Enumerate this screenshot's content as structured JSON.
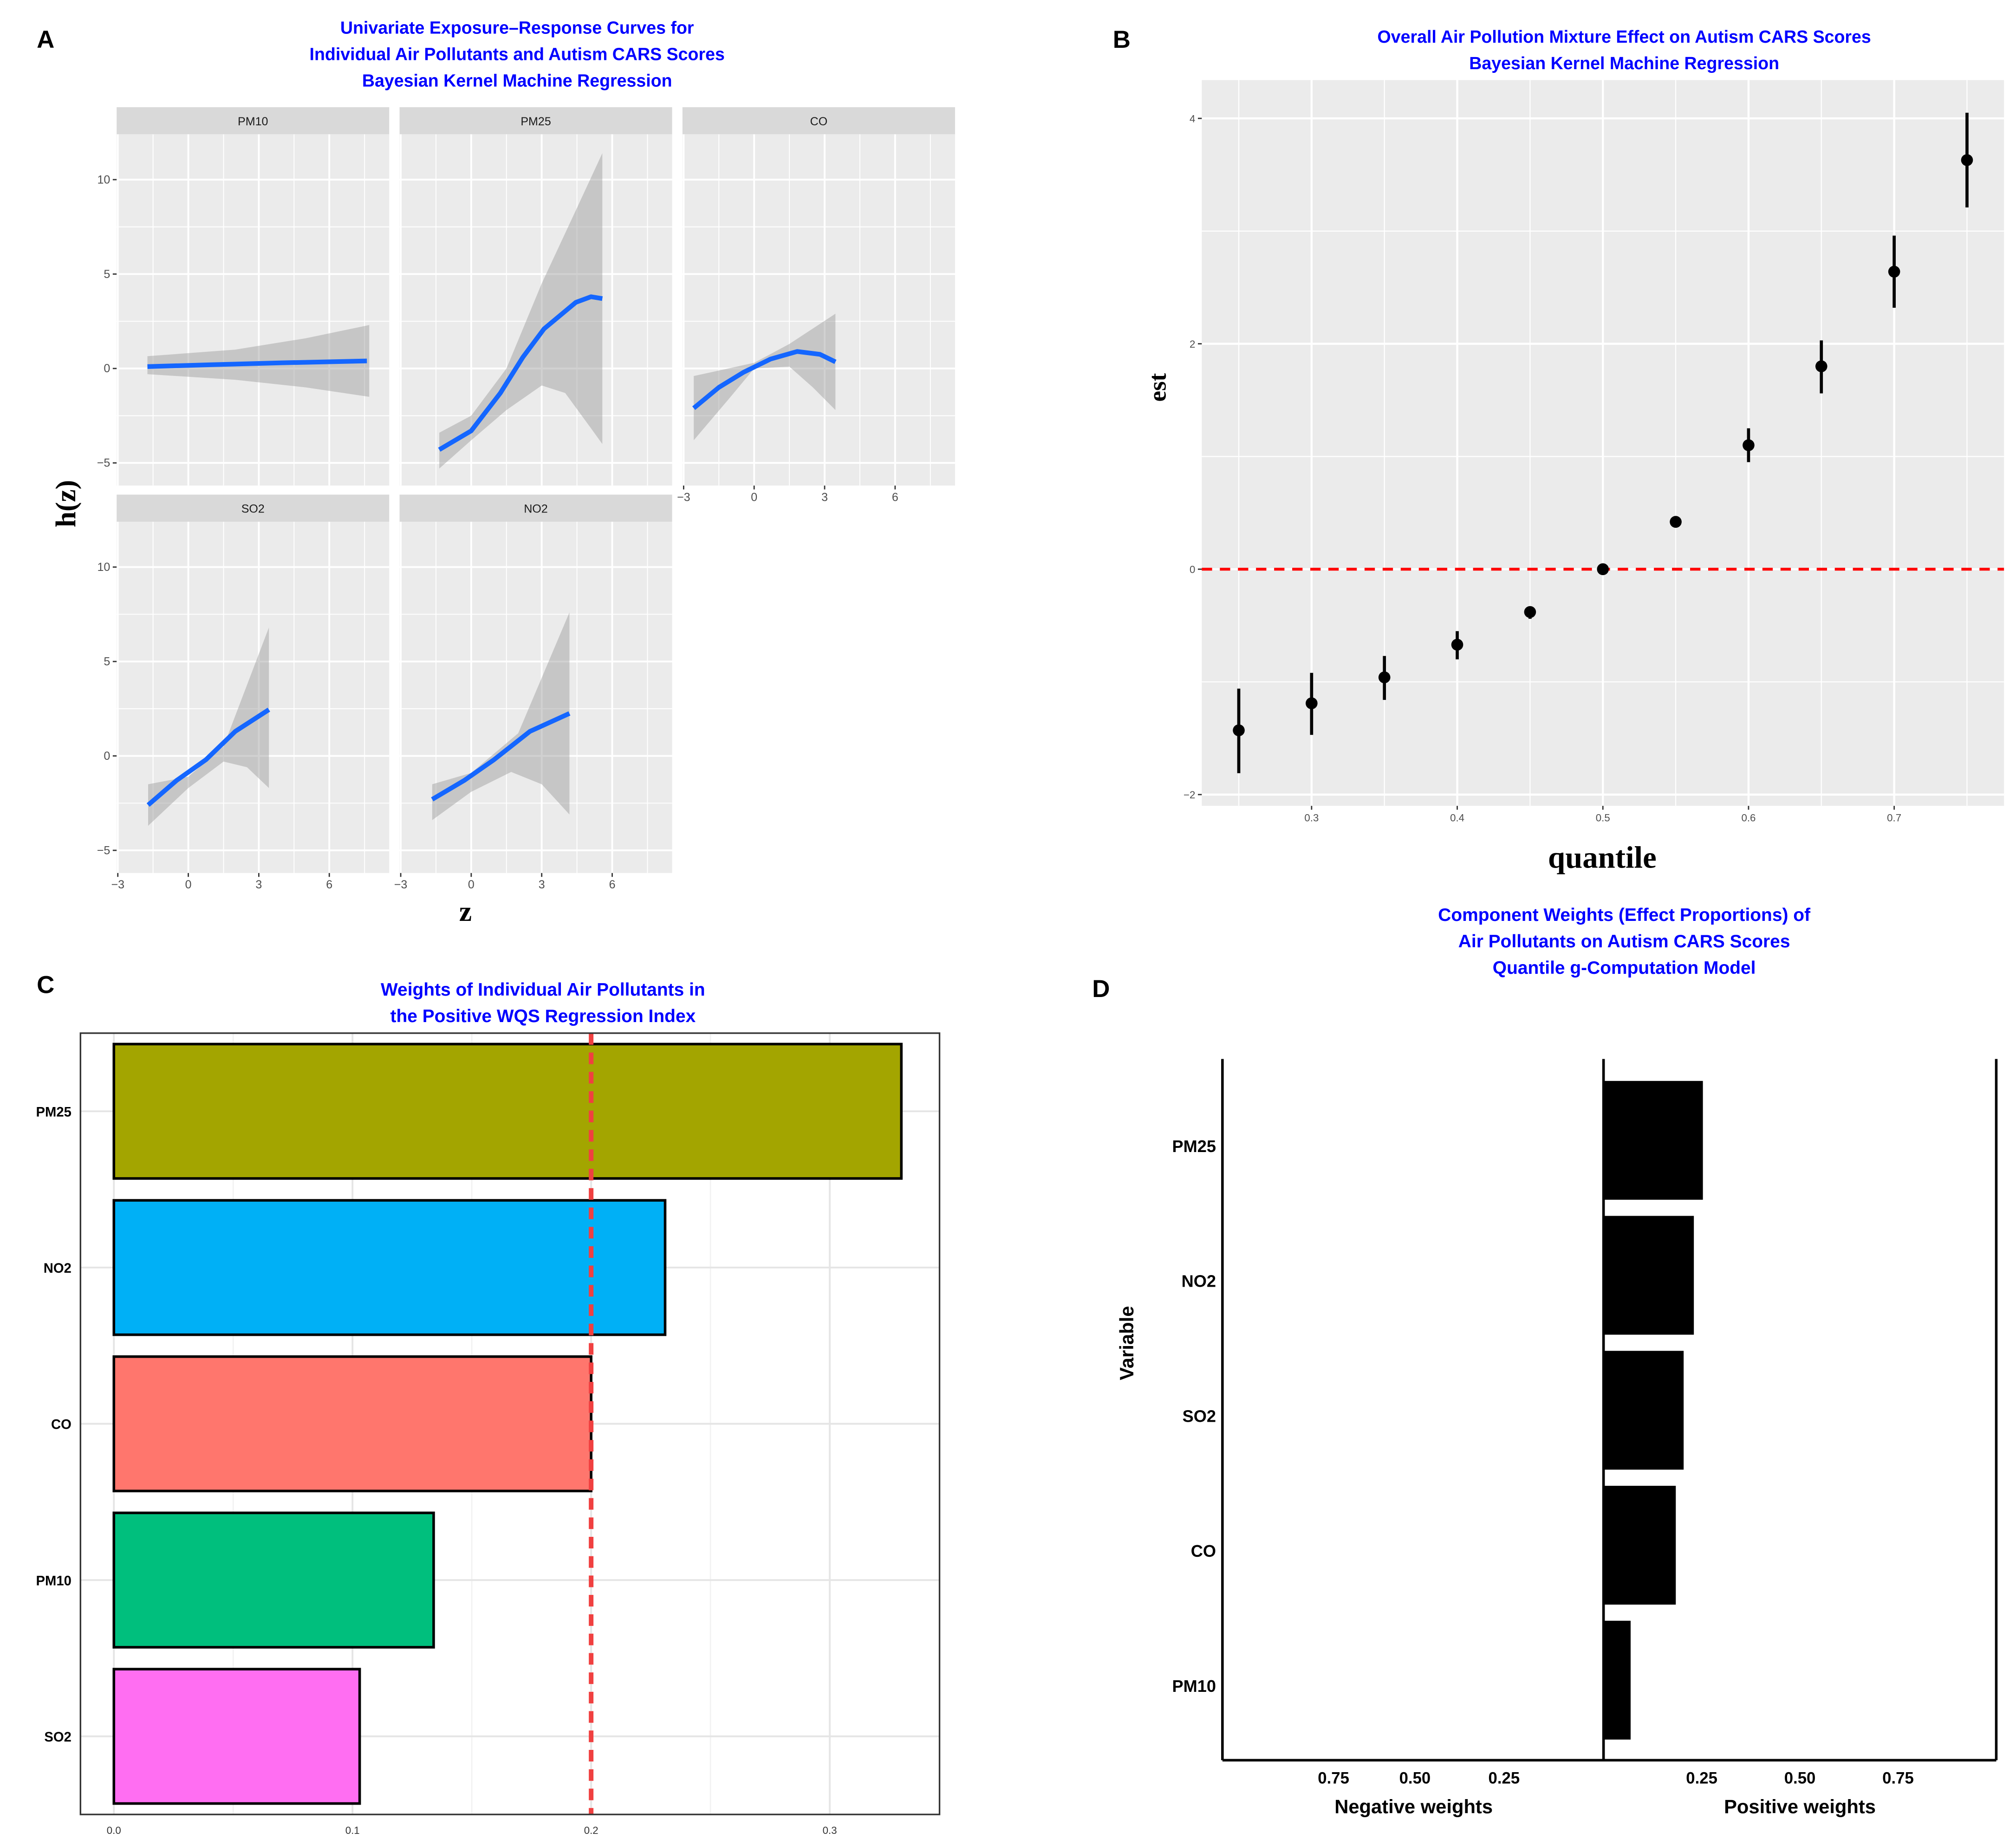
{
  "chart_data": [
    {
      "panel_label": "A",
      "type": "line",
      "title": [
        "Univariate Exposure–Response Curves for",
        "Individual Air Pollutants and Autism CARS Scores",
        "Bayesian Kernel Machine Regression"
      ],
      "xlabel": "z",
      "ylabel": "h(z)",
      "xlim": [
        -3.05,
        8.55
      ],
      "ylim": [
        -6.2,
        12.4
      ],
      "xticks": [
        -3,
        0,
        3,
        6
      ],
      "yticks": [
        -5,
        0,
        5,
        10
      ],
      "xtick_labels": [
        "−3",
        "0",
        "3",
        "6"
      ],
      "ytick_labels": [
        "−5",
        "0",
        "5",
        "10"
      ],
      "colors": {
        "curve": "#1466FF",
        "band": "#999999",
        "panel": "#EBEBEB",
        "strip": "#D9D9D9"
      },
      "facets": [
        {
          "name": "PM10",
          "curve": [
            [
              -1.74,
              0.1
            ],
            [
              1,
              0.2
            ],
            [
              4,
              0.3
            ],
            [
              7.6,
              0.4
            ]
          ],
          "upper": [
            [
              -1.74,
              0.65
            ],
            [
              2,
              1.0
            ],
            [
              5,
              1.6
            ],
            [
              7.7,
              2.3
            ]
          ],
          "lower": [
            [
              -1.74,
              -0.3
            ],
            [
              2,
              -0.6
            ],
            [
              5,
              -1.0
            ],
            [
              7.7,
              -1.5
            ]
          ]
        },
        {
          "name": "PM25",
          "curve": [
            [
              -1.36,
              -4.3
            ],
            [
              0,
              -3.3
            ],
            [
              1.24,
              -1.3
            ],
            [
              2.2,
              0.6
            ],
            [
              3.1,
              2.1
            ],
            [
              4.45,
              3.5
            ],
            [
              5.1,
              3.8
            ],
            [
              5.58,
              3.7
            ]
          ],
          "upper": [
            [
              -1.36,
              -3.4
            ],
            [
              0,
              -2.5
            ],
            [
              1.5,
              0
            ],
            [
              3,
              4.5
            ],
            [
              4.5,
              8.5
            ],
            [
              5.58,
              11.4
            ]
          ],
          "lower": [
            [
              -1.36,
              -5.3
            ],
            [
              0,
              -3.8
            ],
            [
              1.5,
              -2.2
            ],
            [
              3,
              -0.9
            ],
            [
              4,
              -1.3
            ],
            [
              5,
              -3
            ],
            [
              5.58,
              -4
            ]
          ]
        },
        {
          "name": "CO",
          "curve": [
            [
              -2.57,
              -2.1
            ],
            [
              -1.5,
              -1.0
            ],
            [
              -0.45,
              -0.2
            ],
            [
              0.7,
              0.5
            ],
            [
              1.83,
              0.9
            ],
            [
              2.8,
              0.75
            ],
            [
              3.46,
              0.35
            ]
          ],
          "upper": [
            [
              -2.57,
              -0.4
            ],
            [
              0,
              0.3
            ],
            [
              1.5,
              1.3
            ],
            [
              3.46,
              2.9
            ]
          ],
          "lower": [
            [
              -2.57,
              -3.8
            ],
            [
              -1,
              -1.5
            ],
            [
              0,
              0
            ],
            [
              1.5,
              0.1
            ],
            [
              2.5,
              -1
            ],
            [
              3.46,
              -2.2
            ]
          ]
        },
        {
          "name": "SO2",
          "curve": [
            [
              -1.71,
              -2.6
            ],
            [
              -0.5,
              -1.3
            ],
            [
              0.75,
              -0.2
            ],
            [
              2,
              1.3
            ],
            [
              3.43,
              2.45
            ]
          ],
          "upper": [
            [
              -1.71,
              -1.5
            ],
            [
              0,
              -1.1
            ],
            [
              1.5,
              0.5
            ],
            [
              3.43,
              6.8
            ]
          ],
          "lower": [
            [
              -1.71,
              -3.7
            ],
            [
              0,
              -1.7
            ],
            [
              1.5,
              -0.3
            ],
            [
              2.5,
              -0.6
            ],
            [
              3.43,
              -1.7
            ]
          ]
        },
        {
          "name": "NO2",
          "curve": [
            [
              -1.66,
              -2.3
            ],
            [
              -0.3,
              -1.3
            ],
            [
              0.97,
              -0.2
            ],
            [
              2.5,
              1.3
            ],
            [
              4.18,
              2.25
            ]
          ],
          "upper": [
            [
              -1.66,
              -1.5
            ],
            [
              0,
              -0.9
            ],
            [
              2,
              1.2
            ],
            [
              4.18,
              7.6
            ]
          ],
          "lower": [
            [
              -1.66,
              -3.4
            ],
            [
              0,
              -1.9
            ],
            [
              1.7,
              -0.85
            ],
            [
              3,
              -1.5
            ],
            [
              4.18,
              -3.1
            ]
          ]
        }
      ]
    },
    {
      "panel_label": "B",
      "type": "scatter",
      "title": [
        "Overall Air Pollution Mixture Effect on Autism CARS Scores",
        "Bayesian Kernel Machine Regression"
      ],
      "xlabel": "quantile",
      "ylabel": "est",
      "xlim": [
        0.2246,
        0.7754
      ],
      "ylim": [
        -2.1,
        4.34
      ],
      "xticks": [
        0.3,
        0.4,
        0.5,
        0.6,
        0.7
      ],
      "xtick_labels": [
        "0.3",
        "0.4",
        "0.5",
        "0.6",
        "0.7"
      ],
      "yticks": [
        -2,
        0,
        2,
        4
      ],
      "ytick_labels": [
        "−2",
        "0",
        "2",
        "4"
      ],
      "reference_line": 0,
      "colors": {
        "point": "#000000",
        "reference": "#FF0000",
        "panel": "#EBEBEB"
      },
      "x": [
        0.25,
        0.3,
        0.35,
        0.4,
        0.45,
        0.5,
        0.55,
        0.6,
        0.65,
        0.7,
        0.75
      ],
      "est": [
        -1.43,
        -1.19,
        -0.96,
        -0.67,
        -0.38,
        0.0,
        0.42,
        1.1,
        1.8,
        2.64,
        3.63
      ],
      "lower": [
        -1.81,
        -1.47,
        -1.16,
        -0.8,
        -0.44,
        -0.02,
        0.39,
        0.95,
        1.56,
        2.32,
        3.21
      ],
      "upper": [
        -1.06,
        -0.92,
        -0.77,
        -0.55,
        -0.33,
        0.02,
        0.45,
        1.25,
        2.03,
        2.96,
        4.05
      ]
    },
    {
      "panel_label": "C",
      "type": "bar",
      "orientation": "horizontal",
      "title": [
        "Weights of Individual Air Pollutants in",
        " the Positive WQS Regression Index"
      ],
      "categories": [
        "PM25",
        "NO2",
        "CO",
        "PM10",
        "SO2"
      ],
      "values": [
        0.33,
        0.231,
        0.2,
        0.134,
        0.103
      ],
      "bar_colors": [
        "#A3A500",
        "#00B0F6",
        "#FF766D",
        "#00BF7D",
        "#FF6EF2"
      ],
      "threshold": 0.2,
      "threshold_color": "#F04040",
      "xlim": [
        -0.014,
        0.346
      ],
      "xticks": [
        0.0,
        0.1,
        0.2,
        0.3
      ],
      "xtick_labels": [
        "0.0",
        "0.1",
        "0.2",
        "0.3"
      ]
    },
    {
      "panel_label": "D",
      "type": "bar",
      "orientation": "horizontal",
      "title": [
        "Component Weights (Effect Proportions) of",
        "Air Pollutants on Autism CARS Scores",
        "Quantile g-Computation Model"
      ],
      "ylabel": "Variable",
      "categories": [
        "PM25",
        "NO2",
        "SO2",
        "CO",
        "PM10"
      ],
      "positive_weights": [
        0.253,
        0.23,
        0.204,
        0.184,
        0.069
      ],
      "negative_weights": [],
      "neg_tick_labels": [
        "0.75",
        "0.50",
        "0.25"
      ],
      "pos_tick_labels": [
        "0.25",
        "0.50",
        "0.75"
      ],
      "neg_label": "Negative weights",
      "pos_label": "Positive weights",
      "bar_color": "#000000"
    }
  ]
}
